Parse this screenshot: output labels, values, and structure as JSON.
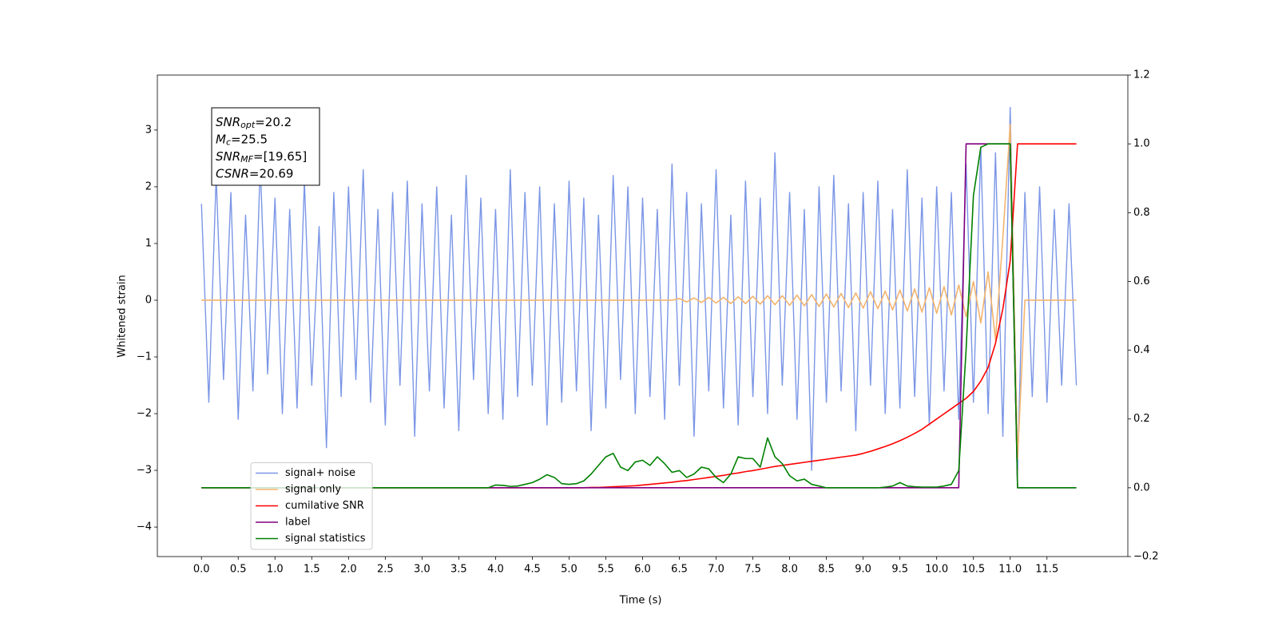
{
  "chart_data": {
    "type": "line",
    "xlabel": "Time (s)",
    "ylabel": "Whitened strain",
    "annotations": [
      {
        "name": "SNR",
        "sub": "opt",
        "text": "=20.2"
      },
      {
        "name": "M",
        "sub": "c",
        "text": "=25.5"
      },
      {
        "name": "SNR",
        "sub": "MF",
        "text": "=[19.65]"
      },
      {
        "name": "CSNR",
        "text": "=20.69"
      }
    ],
    "legend": "lower left",
    "xlim": [
      -0.6,
      12.6
    ],
    "ylim": [
      -4.52,
      3.97
    ],
    "y2lim": [
      -0.2,
      1.2
    ],
    "xticks": [
      {
        "value": 0,
        "label": "0.0"
      },
      0.5,
      {
        "value": 1,
        "label": "1.0"
      },
      1.5,
      {
        "value": 2,
        "label": "2.0"
      },
      2.5,
      {
        "value": 3,
        "label": "3.0"
      },
      3.5,
      {
        "value": 4,
        "label": "4.0"
      },
      4.5,
      {
        "value": 5,
        "label": "5.0"
      },
      5.5,
      {
        "value": 6,
        "label": "6.0"
      },
      6.5,
      {
        "value": 7,
        "label": "7.0"
      },
      7.5,
      {
        "value": 8,
        "label": "8.0"
      },
      8.5,
      {
        "value": 9,
        "label": "9.0"
      },
      9.5,
      {
        "value": 10,
        "label": "10.0"
      },
      10.5,
      {
        "value": 11,
        "label": "11.0"
      },
      11.5
    ],
    "yticks": [
      {
        "value": -4,
        "label": "−4"
      },
      {
        "value": -3,
        "label": "−3"
      },
      {
        "value": -2,
        "label": "−2"
      },
      {
        "value": -1,
        "label": "−1"
      },
      0,
      1,
      2,
      3
    ],
    "y2ticks": [
      {
        "value": -0.2,
        "label": "−0.2"
      },
      {
        "value": 0,
        "label": "0.0"
      },
      0.2,
      0.4,
      0.6,
      0.8,
      {
        "value": 1,
        "label": "1.0"
      },
      1.2
    ],
    "x": [
      0,
      0.1,
      0.2,
      0.3,
      0.4,
      0.5,
      0.6,
      0.7,
      0.8,
      0.9,
      1,
      1.1,
      1.2,
      1.3,
      1.4,
      1.5,
      1.6,
      1.7,
      1.8,
      1.9,
      2,
      2.1,
      2.2,
      2.3,
      2.4,
      2.5,
      2.6,
      2.7,
      2.8,
      2.9,
      3,
      3.1,
      3.2,
      3.3,
      3.4,
      3.5,
      3.6,
      3.7,
      3.8,
      3.9,
      4,
      4.1,
      4.2,
      4.3,
      4.4,
      4.5,
      4.6,
      4.7,
      4.8,
      4.9,
      5,
      5.1,
      5.2,
      5.3,
      5.4,
      5.5,
      5.6,
      5.7,
      5.8,
      5.9,
      6,
      6.1,
      6.2,
      6.3,
      6.4,
      6.5,
      6.6,
      6.7,
      6.8,
      6.9,
      7,
      7.1,
      7.2,
      7.3,
      7.4,
      7.5,
      7.6,
      7.7,
      7.8,
      7.9,
      8,
      8.1,
      8.2,
      8.3,
      8.4,
      8.5,
      8.6,
      8.7,
      8.8,
      8.9,
      9,
      9.1,
      9.2,
      9.3,
      9.4,
      9.5,
      9.6,
      9.7,
      9.8,
      9.9,
      10,
      10.1,
      10.2,
      10.3,
      10.4,
      10.5,
      10.6,
      10.7,
      10.8,
      10.9,
      11,
      11.1,
      11.2,
      11.3,
      11.4,
      11.5,
      11.6,
      11.7,
      11.8,
      11.9
    ],
    "series": [
      {
        "name": "signal+ noise",
        "color": "#7b96e6",
        "values": [
          1.7,
          -1.8,
          2.2,
          -1.4,
          1.9,
          -2.1,
          1.5,
          -1.6,
          2.4,
          -1.3,
          1.8,
          -2.0,
          1.6,
          -1.9,
          2.1,
          -1.5,
          1.3,
          -2.6,
          1.9,
          -1.7,
          2.0,
          -1.4,
          2.3,
          -1.8,
          1.6,
          -2.2,
          1.9,
          -1.5,
          2.1,
          -2.4,
          1.7,
          -1.6,
          2.0,
          -1.9,
          1.5,
          -2.3,
          2.2,
          -1.4,
          1.8,
          -2.0,
          1.6,
          -2.1,
          2.3,
          -1.7,
          1.9,
          -1.5,
          2.0,
          -2.2,
          1.7,
          -1.8,
          2.1,
          -1.6,
          1.8,
          -2.3,
          1.5,
          -1.9,
          2.2,
          -1.4,
          2.0,
          -2.0,
          1.8,
          -1.7,
          1.6,
          -2.1,
          2.4,
          -1.5,
          1.9,
          -2.4,
          1.7,
          -1.6,
          2.3,
          -1.9,
          1.5,
          -2.2,
          2.1,
          -1.7,
          1.8,
          -2.0,
          2.6,
          -1.5,
          1.9,
          -2.1,
          1.6,
          -3.0,
          2.0,
          -1.8,
          2.2,
          -1.6,
          1.7,
          -2.3,
          1.9,
          -1.5,
          2.1,
          -2.0,
          1.6,
          -1.9,
          2.3,
          -1.7,
          1.8,
          -2.2,
          2.0,
          -1.6,
          1.9,
          -2.1,
          2.4,
          -1.8,
          2.7,
          -2.0,
          2.6,
          -2.4,
          3.4,
          -3.0,
          1.9,
          -1.7,
          2.0,
          -1.8,
          1.6,
          -1.5,
          1.7,
          -1.5
        ]
      },
      {
        "name": "signal only",
        "color": "#f2b46e",
        "values": [
          0,
          0,
          0,
          0,
          0,
          0,
          0,
          0,
          0,
          0,
          0,
          0,
          0,
          0,
          0,
          0,
          0,
          0,
          0,
          0,
          0,
          0,
          0,
          0,
          0,
          0,
          0,
          0,
          0,
          0,
          0,
          0,
          0,
          0,
          0,
          0,
          0,
          0,
          0,
          0,
          0,
          0,
          0,
          0,
          0,
          0,
          0,
          0,
          0,
          0,
          0,
          0,
          0,
          0,
          0,
          0,
          0,
          0,
          0,
          0,
          0,
          0,
          0,
          0,
          0,
          0.03,
          -0.03,
          0.04,
          -0.04,
          0.05,
          -0.05,
          0.05,
          -0.06,
          0.06,
          -0.06,
          0.07,
          -0.07,
          0.08,
          -0.08,
          0.08,
          -0.09,
          0.09,
          -0.1,
          0.1,
          -0.11,
          0.11,
          -0.12,
          0.12,
          -0.13,
          0.13,
          -0.14,
          0.15,
          -0.15,
          0.16,
          -0.17,
          0.18,
          -0.19,
          0.2,
          -0.21,
          0.22,
          -0.23,
          0.24,
          -0.26,
          0.27,
          -0.29,
          0.33,
          -0.4,
          0.5,
          -0.7,
          1.1,
          3.1,
          -2.8,
          0,
          0,
          0,
          0,
          0,
          0,
          0,
          0
        ]
      },
      {
        "name": "cumilative SNR",
        "color": "#ff0000",
        "axis": "y2",
        "values": [
          0,
          0,
          0,
          0,
          0,
          0,
          0,
          0,
          0,
          0,
          0,
          0,
          0,
          0,
          0,
          0,
          0,
          0,
          0,
          0,
          0,
          0,
          0,
          0,
          0,
          0,
          0,
          0,
          0,
          0,
          0,
          0,
          0,
          0,
          0,
          0,
          0,
          0,
          0,
          0,
          0,
          0,
          0,
          0,
          0,
          0,
          0,
          0,
          0,
          0,
          0,
          0,
          0,
          0.001,
          0.001,
          0.002,
          0.003,
          0.004,
          0.005,
          0.006,
          0.008,
          0.01,
          0.012,
          0.014,
          0.016,
          0.019,
          0.021,
          0.024,
          0.027,
          0.03,
          0.033,
          0.036,
          0.04,
          0.043,
          0.047,
          0.05,
          0.054,
          0.058,
          0.062,
          0.065,
          0.068,
          0.071,
          0.074,
          0.077,
          0.08,
          0.083,
          0.086,
          0.089,
          0.092,
          0.095,
          0.1,
          0.106,
          0.113,
          0.12,
          0.128,
          0.137,
          0.147,
          0.158,
          0.17,
          0.185,
          0.2,
          0.215,
          0.23,
          0.245,
          0.26,
          0.28,
          0.31,
          0.35,
          0.42,
          0.52,
          0.66,
          1,
          1,
          1,
          1,
          1,
          1,
          1,
          1,
          1
        ]
      },
      {
        "name": "label",
        "color": "#800080",
        "axis": "y2",
        "values": [
          0,
          0,
          0,
          0,
          0,
          0,
          0,
          0,
          0,
          0,
          0,
          0,
          0,
          0,
          0,
          0,
          0,
          0,
          0,
          0,
          0,
          0,
          0,
          0,
          0,
          0,
          0,
          0,
          0,
          0,
          0,
          0,
          0,
          0,
          0,
          0,
          0,
          0,
          0,
          0,
          0,
          0,
          0,
          0,
          0,
          0,
          0,
          0,
          0,
          0,
          0,
          0,
          0,
          0,
          0,
          0,
          0,
          0,
          0,
          0,
          0,
          0,
          0,
          0,
          0,
          0,
          0,
          0,
          0,
          0,
          0,
          0,
          0,
          0,
          0,
          0,
          0,
          0,
          0,
          0,
          0,
          0,
          0,
          0,
          0,
          0,
          0,
          0,
          0,
          0,
          0,
          0,
          0,
          0,
          0,
          0,
          0,
          0,
          0,
          0,
          0,
          0,
          0,
          0,
          1,
          1,
          1,
          1,
          1,
          1,
          1,
          0,
          0,
          0,
          0,
          0,
          0,
          0,
          0,
          0
        ]
      },
      {
        "name": "signal statistics",
        "color": "#008000",
        "axis": "y2",
        "values": [
          0,
          0,
          0,
          0,
          0,
          0,
          0,
          0,
          0,
          0,
          0,
          0,
          0,
          0,
          0,
          0,
          0,
          0,
          0,
          0,
          0,
          0,
          0,
          0,
          0,
          0,
          0,
          0,
          0,
          0,
          0,
          0,
          0,
          0,
          0,
          0,
          0,
          0,
          0,
          0,
          0.008,
          0.007,
          0.004,
          0.005,
          0.01,
          0.015,
          0.025,
          0.038,
          0.03,
          0.012,
          0.01,
          0.012,
          0.02,
          0.04,
          0.065,
          0.09,
          0.1,
          0.06,
          0.05,
          0.075,
          0.08,
          0.065,
          0.09,
          0.07,
          0.045,
          0.05,
          0.03,
          0.04,
          0.06,
          0.055,
          0.03,
          0.015,
          0.04,
          0.09,
          0.085,
          0.085,
          0.06,
          0.145,
          0.09,
          0.07,
          0.035,
          0.02,
          0.025,
          0.01,
          0.005,
          0,
          0,
          0,
          0,
          0,
          0,
          0,
          0,
          0.002,
          0.005,
          0.015,
          0.005,
          0.003,
          0.002,
          0.002,
          0.002,
          0.005,
          0.01,
          0.05,
          0.4,
          0.85,
          0.99,
          1,
          1,
          1,
          1,
          0,
          0,
          0,
          0,
          0,
          0,
          0,
          0,
          0
        ]
      }
    ]
  }
}
